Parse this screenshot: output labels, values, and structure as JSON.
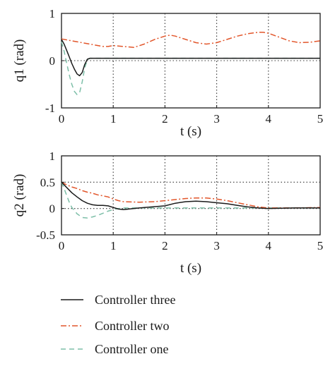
{
  "chart_data": [
    {
      "type": "line",
      "title": "",
      "xlabel": "t (s)",
      "ylabel": "q1 (rad)",
      "xlim": [
        0,
        5
      ],
      "ylim": [
        -1,
        1
      ],
      "xticks": [
        "0",
        "1",
        "2",
        "3",
        "4",
        "5"
      ],
      "yticks": [
        "1",
        "0",
        "-1"
      ],
      "grid": "dotted",
      "series": [
        {
          "name": "Controller three",
          "color": "#1a1a1a",
          "dash": "solid",
          "x": [
            0,
            0.05,
            0.1,
            0.15,
            0.2,
            0.25,
            0.3,
            0.35,
            0.4,
            0.45,
            0.5,
            0.55,
            0.6,
            1,
            2,
            3,
            4,
            5
          ],
          "y": [
            0.45,
            0.35,
            0.22,
            0.08,
            -0.06,
            -0.18,
            -0.28,
            -0.32,
            -0.25,
            -0.08,
            0.03,
            0.05,
            0.05,
            0.05,
            0.05,
            0.05,
            0.05,
            0.05
          ]
        },
        {
          "name": "Controller two",
          "color": "#e2562b",
          "dash": "dashdot",
          "x": [
            0,
            0.2,
            0.5,
            0.8,
            0.9,
            1.0,
            1.2,
            1.4,
            1.6,
            1.8,
            2.0,
            2.1,
            2.2,
            2.4,
            2.6,
            2.8,
            3.0,
            3.2,
            3.4,
            3.6,
            3.8,
            3.9,
            4.0,
            4.2,
            4.4,
            4.6,
            4.8,
            5.0
          ],
          "y": [
            0.46,
            0.42,
            0.36,
            0.3,
            0.3,
            0.32,
            0.3,
            0.28,
            0.35,
            0.45,
            0.52,
            0.54,
            0.52,
            0.45,
            0.38,
            0.35,
            0.38,
            0.45,
            0.52,
            0.57,
            0.6,
            0.6,
            0.58,
            0.5,
            0.42,
            0.38,
            0.39,
            0.42
          ]
        },
        {
          "name": "Controller one",
          "color": "#7dbfa8",
          "dash": "dashed",
          "x": [
            0,
            0.05,
            0.1,
            0.15,
            0.2,
            0.25,
            0.3,
            0.35,
            0.4,
            0.45,
            0.5,
            0.55,
            0.6,
            1,
            2,
            3,
            4,
            5
          ],
          "y": [
            0.4,
            0.2,
            -0.05,
            -0.3,
            -0.5,
            -0.65,
            -0.72,
            -0.68,
            -0.45,
            -0.15,
            0.02,
            0.05,
            0.05,
            0.05,
            0.05,
            0.05,
            0.05,
            0.05
          ]
        }
      ]
    },
    {
      "type": "line",
      "title": "",
      "xlabel": "t (s)",
      "ylabel": "q2 (rad)",
      "xlim": [
        0,
        5
      ],
      "ylim": [
        -0.5,
        1
      ],
      "xticks": [
        "0",
        "1",
        "2",
        "3",
        "4",
        "5"
      ],
      "yticks": [
        "1",
        "0.5",
        "0",
        "-0.5"
      ],
      "grid": "dotted",
      "series": [
        {
          "name": "Controller three",
          "color": "#1a1a1a",
          "dash": "solid",
          "x": [
            0,
            0.1,
            0.2,
            0.3,
            0.4,
            0.5,
            0.6,
            0.7,
            0.8,
            0.9,
            1.0,
            1.1,
            1.2,
            1.5,
            2.0,
            2.2,
            2.4,
            2.6,
            2.8,
            3.0,
            3.2,
            3.4,
            3.6,
            3.8,
            4.0,
            4.5,
            5.0
          ],
          "y": [
            0.5,
            0.4,
            0.3,
            0.22,
            0.15,
            0.1,
            0.07,
            0.06,
            0.06,
            0.05,
            0.02,
            -0.01,
            -0.02,
            0.01,
            0.05,
            0.1,
            0.13,
            0.14,
            0.13,
            0.11,
            0.09,
            0.06,
            0.03,
            0.01,
            0.0,
            0.01,
            0.01
          ]
        },
        {
          "name": "Controller two",
          "color": "#e2562b",
          "dash": "dashdot",
          "x": [
            0,
            0.1,
            0.2,
            0.3,
            0.4,
            0.5,
            0.6,
            0.7,
            0.8,
            0.9,
            1.0,
            1.1,
            1.2,
            1.5,
            1.8,
            2.0,
            2.2,
            2.4,
            2.6,
            2.8,
            3.0,
            3.2,
            3.4,
            3.6,
            3.8,
            4.0,
            4.5,
            5.0
          ],
          "y": [
            0.5,
            0.45,
            0.41,
            0.38,
            0.34,
            0.31,
            0.29,
            0.26,
            0.24,
            0.22,
            0.18,
            0.15,
            0.13,
            0.12,
            0.13,
            0.15,
            0.17,
            0.19,
            0.2,
            0.2,
            0.18,
            0.15,
            0.11,
            0.07,
            0.03,
            0.01,
            0.01,
            0.02
          ]
        },
        {
          "name": "Controller one",
          "color": "#7dbfa8",
          "dash": "dashed",
          "x": [
            0,
            0.05,
            0.1,
            0.15,
            0.2,
            0.3,
            0.4,
            0.5,
            0.6,
            0.7,
            0.8,
            0.9,
            1.0,
            1.1,
            1.2,
            1.5,
            2.0,
            3.0,
            4.0,
            5.0
          ],
          "y": [
            0.5,
            0.38,
            0.25,
            0.12,
            0.02,
            -0.1,
            -0.17,
            -0.18,
            -0.16,
            -0.13,
            -0.09,
            -0.05,
            -0.02,
            0.0,
            0.01,
            0.01,
            0.01,
            0.01,
            0.01,
            0.01
          ]
        }
      ]
    }
  ],
  "legend": [
    {
      "label": "Controller three",
      "color": "#1a1a1a",
      "dash": "solid"
    },
    {
      "label": "Controller two",
      "color": "#e2562b",
      "dash": "dashdot"
    },
    {
      "label": "Controller one",
      "color": "#7dbfa8",
      "dash": "dashed"
    }
  ]
}
